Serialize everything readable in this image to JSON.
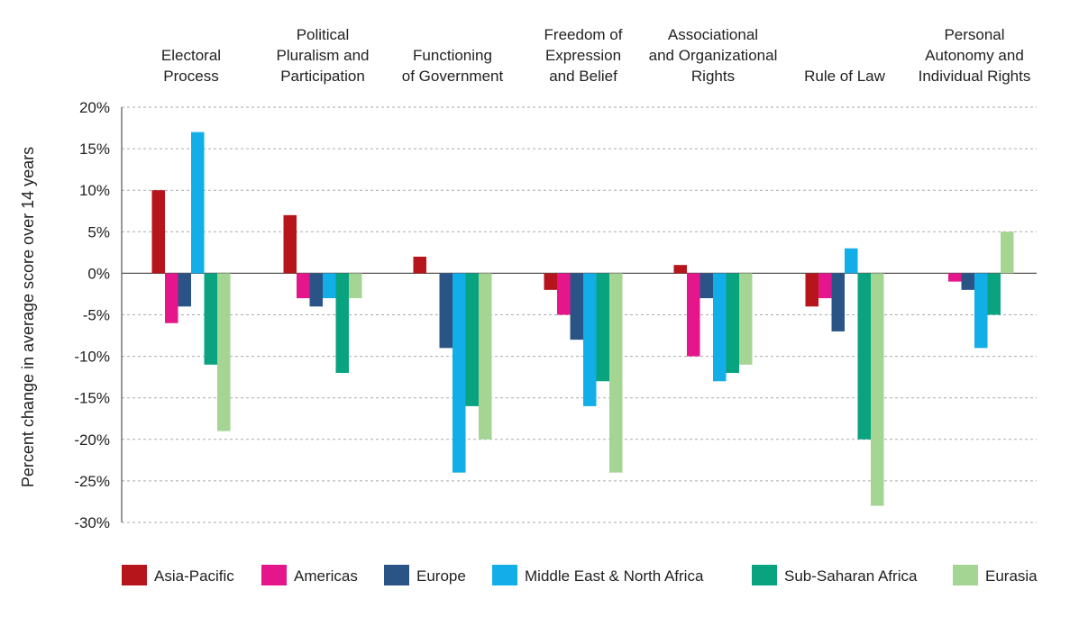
{
  "chart_data": {
    "type": "bar",
    "ylabel": "Percent change in average score over 14 years",
    "ylim": [
      -30,
      20
    ],
    "yticks": [
      20,
      15,
      10,
      5,
      0,
      -5,
      -10,
      -15,
      -20,
      -25,
      -30
    ],
    "ytick_labels": [
      "20%",
      "15%",
      "10%",
      "5%",
      "0%",
      "-5%",
      "-10%",
      "-15%",
      "-20%",
      "-25%",
      "-30%"
    ],
    "grid": "horizontal dashed",
    "legend_position": "bottom",
    "categories": [
      [
        "Electoral",
        "Process"
      ],
      [
        "Political",
        "Pluralism and",
        "Participation"
      ],
      [
        "Functioning",
        "of Government"
      ],
      [
        "Freedom of",
        "Expression",
        "and Belief"
      ],
      [
        "Associational",
        "and Organizational",
        "Rights"
      ],
      [
        "Rule of Law"
      ],
      [
        "Personal",
        "Autonomy and",
        "Individual Rights"
      ]
    ],
    "series": [
      {
        "name": "Asia-Pacific",
        "color": "#b5151b",
        "values": [
          10,
          7,
          2,
          -2,
          1,
          -4,
          0
        ]
      },
      {
        "name": "Americas",
        "color": "#e5168c",
        "values": [
          -6,
          -3,
          0,
          -5,
          -10,
          -3,
          -1
        ]
      },
      {
        "name": "Europe",
        "color": "#2b5486",
        "values": [
          -4,
          -4,
          -9,
          -8,
          -3,
          -7,
          -2
        ]
      },
      {
        "name": "Middle East & North Africa",
        "color": "#12aee8",
        "values": [
          17,
          -3,
          -24,
          -16,
          -13,
          3,
          -9
        ]
      },
      {
        "name": "Sub-Saharan Africa",
        "color": "#0aa380",
        "values": [
          -11,
          -12,
          -16,
          -13,
          -12,
          -20,
          -5
        ]
      },
      {
        "name": "Eurasia",
        "color": "#a5d593",
        "values": [
          -19,
          -3,
          -20,
          -24,
          -11,
          -28,
          5
        ]
      }
    ]
  }
}
